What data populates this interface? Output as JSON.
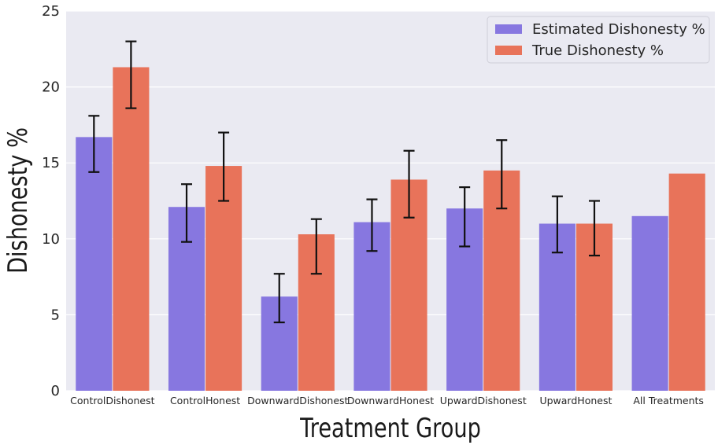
{
  "chart_data": {
    "type": "bar",
    "xlabel": "Treatment Group",
    "ylabel": "Dishonesty %",
    "ylim": [
      0,
      25
    ],
    "yticks": [
      0,
      5,
      10,
      15,
      20,
      25
    ],
    "categories": [
      "ControlDishonest",
      "ControlHonest",
      "DownwardDishonest",
      "DownwardHonest",
      "UpwardDishonest",
      "UpwardHonest",
      "All Treatments"
    ],
    "series": [
      {
        "name": "Estimated Dishonesty %",
        "color": "#8777e0",
        "values": [
          16.7,
          12.1,
          6.2,
          11.1,
          12.0,
          11.0,
          11.5
        ],
        "error_low": [
          14.4,
          9.8,
          4.5,
          9.2,
          9.5,
          9.1,
          null
        ],
        "error_high": [
          18.1,
          13.6,
          7.7,
          12.6,
          13.4,
          12.8,
          null
        ]
      },
      {
        "name": "True Dishonesty %",
        "color": "#e8735a",
        "values": [
          21.3,
          14.8,
          10.3,
          13.9,
          14.5,
          11.0,
          14.3
        ],
        "error_low": [
          18.6,
          12.5,
          7.7,
          11.4,
          12.0,
          8.9,
          null
        ],
        "error_high": [
          23.0,
          17.0,
          11.3,
          15.8,
          16.5,
          12.5,
          null
        ]
      }
    ],
    "grid": true,
    "legend_position": "top-right",
    "background": "#eaeaf2"
  }
}
